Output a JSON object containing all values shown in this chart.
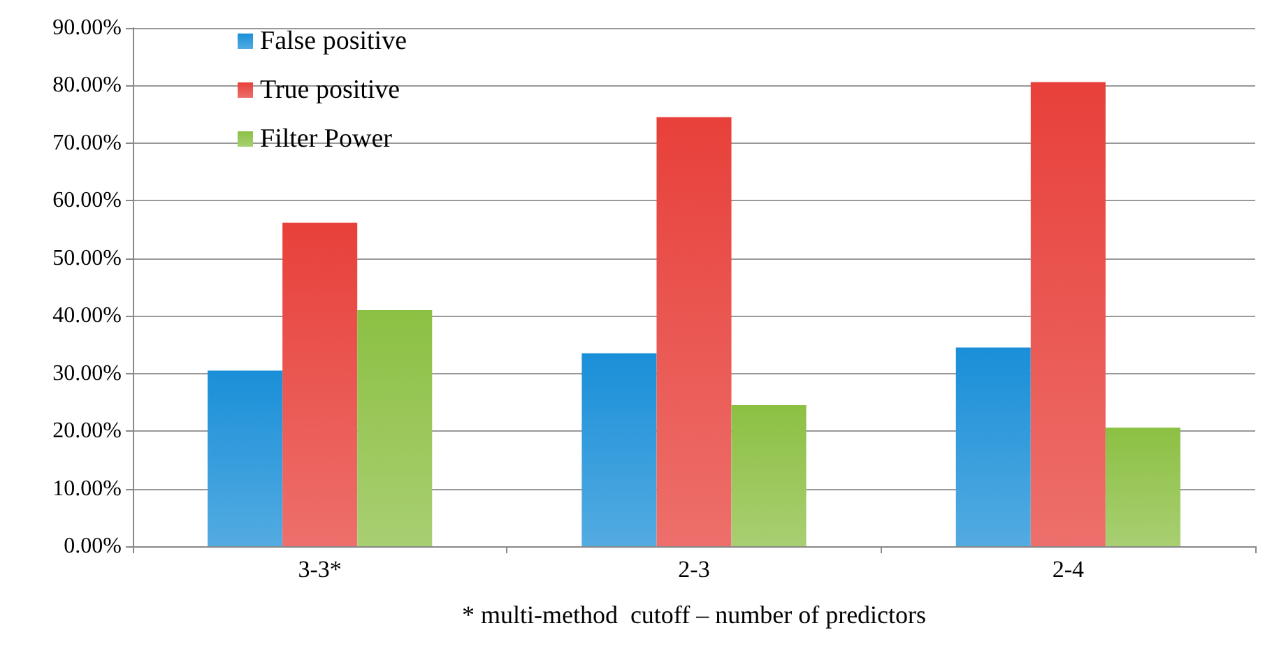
{
  "chart_data": {
    "type": "bar",
    "xlabel": "* multi-method  cutoff – number of predictors",
    "categories": [
      "3-3*",
      "2-3",
      "2-4"
    ],
    "series": [
      {
        "name": "False positive",
        "color": "#1a8fd8",
        "values": [
          30.5,
          33.5,
          34.5
        ]
      },
      {
        "name": "True positive",
        "color": "#e8403a",
        "values": [
          56.2,
          74.5,
          80.6
        ]
      },
      {
        "name": "Filter Power",
        "color": "#8cc043",
        "values": [
          41.0,
          24.5,
          20.6
        ]
      }
    ],
    "ylim": [
      0,
      90
    ],
    "yticks": [
      {
        "value": 0,
        "label": "0.00%"
      },
      {
        "value": 10,
        "label": "10.00%"
      },
      {
        "value": 20,
        "label": "20.00%"
      },
      {
        "value": 30,
        "label": "30.00%"
      },
      {
        "value": 40,
        "label": "40.00%"
      },
      {
        "value": 50,
        "label": "50.00%"
      },
      {
        "value": 60,
        "label": "60.00%"
      },
      {
        "value": 70,
        "label": "70.00%"
      },
      {
        "value": 80,
        "label": "80.00%"
      },
      {
        "value": 90,
        "label": "90.00%"
      }
    ],
    "grid": "y",
    "legend": "top left"
  }
}
